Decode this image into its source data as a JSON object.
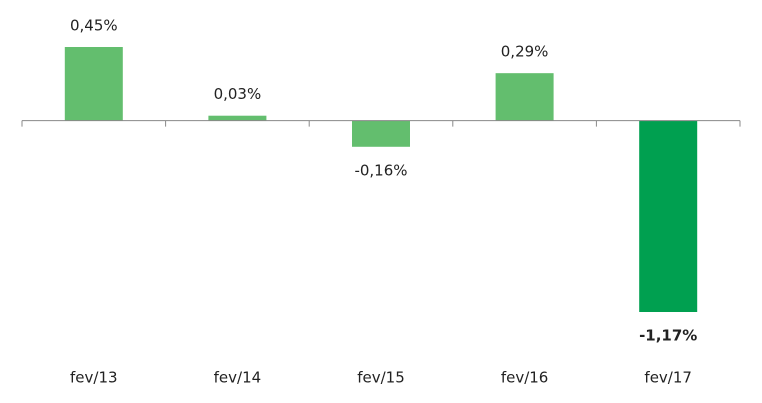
{
  "chart_data": {
    "type": "bar",
    "categories": [
      "fev/13",
      "fev/14",
      "fev/15",
      "fev/16",
      "fev/17"
    ],
    "values": [
      0.45,
      0.03,
      -0.16,
      0.29,
      -1.17
    ],
    "value_labels": [
      "0,45%",
      "0,03%",
      "-0,16%",
      "0,29%",
      "-1,17%"
    ],
    "colors": [
      "#63be6e",
      "#63be6e",
      "#63be6e",
      "#63be6e",
      "#00a050"
    ],
    "value_label_bold": [
      false,
      false,
      false,
      false,
      true
    ]
  }
}
